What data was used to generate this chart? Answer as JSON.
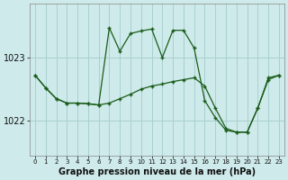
{
  "bg_color": "#ceeaea",
  "grid_color": "#a8d0d0",
  "line_color": "#1a5c1a",
  "marker_color": "#1a5c1a",
  "title": "Graphe pression niveau de la mer (hPa)",
  "ylabel_ticks": [
    1022,
    1023
  ],
  "x_labels": [
    "0",
    "1",
    "2",
    "3",
    "4",
    "5",
    "6",
    "7",
    "8",
    "9",
    "10",
    "11",
    "12",
    "13",
    "14",
    "15",
    "16",
    "17",
    "18",
    "19",
    "20",
    "21",
    "22",
    "23"
  ],
  "xlim": [
    -0.5,
    23.5
  ],
  "ylim": [
    1021.45,
    1023.85
  ],
  "series1": [
    1022.72,
    1022.52,
    1022.35,
    1022.28,
    1022.28,
    1022.27,
    1022.25,
    1023.47,
    1023.1,
    1023.38,
    1023.42,
    1023.45,
    1023.0,
    1023.43,
    1023.43,
    1023.15,
    1022.32,
    1022.05,
    1021.85,
    1021.82,
    1021.82,
    1022.2,
    1022.68,
    1022.72
  ],
  "series2": [
    1022.72,
    1022.52,
    1022.35,
    1022.28,
    1022.28,
    1022.27,
    1022.25,
    1022.28,
    1022.35,
    1022.42,
    1022.5,
    1022.55,
    1022.58,
    1022.62,
    1022.65,
    1022.68,
    1022.55,
    1022.2,
    1021.88,
    1021.82,
    1021.82,
    1022.2,
    1022.65,
    1022.72
  ]
}
